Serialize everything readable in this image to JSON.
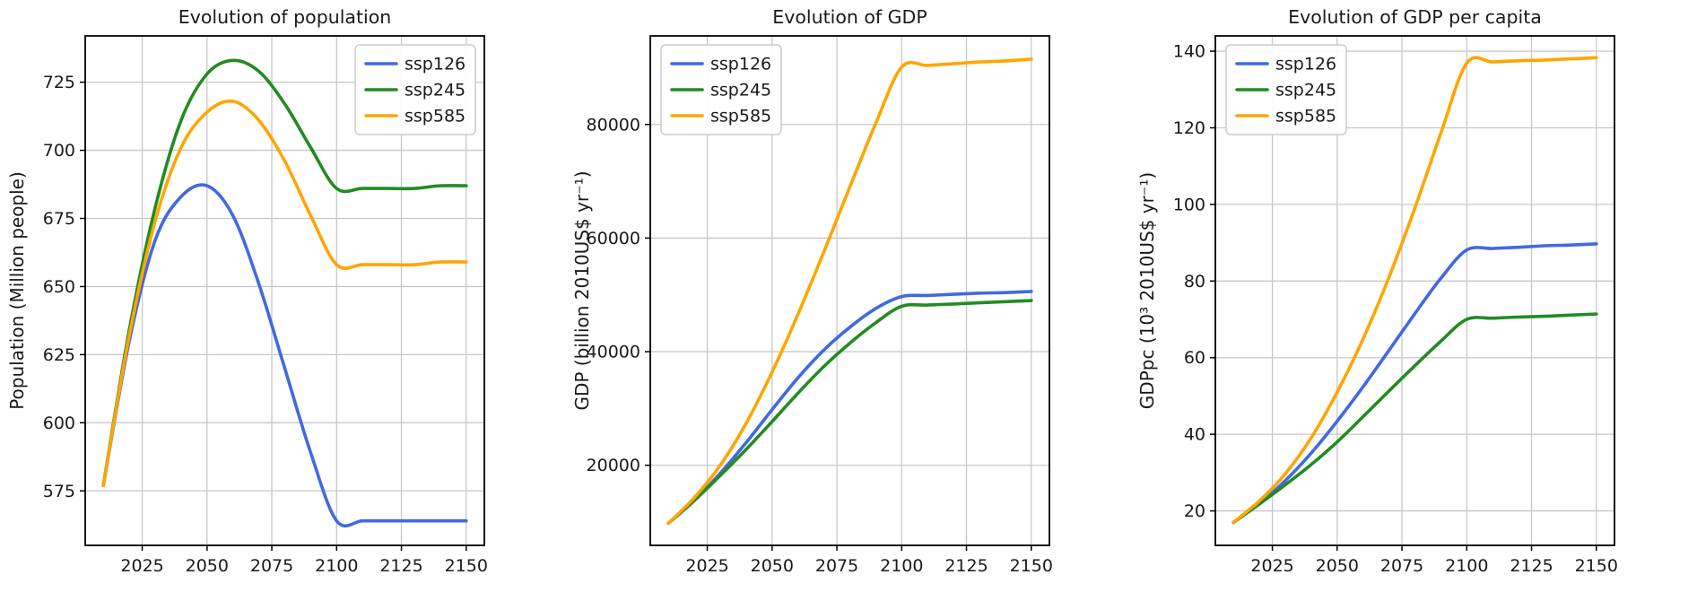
{
  "figure": {
    "background": "#ffffff",
    "grid_color": "#c8c8c8",
    "spine_color": "#000000",
    "legend_border_color": "#cccccc"
  },
  "chart_data": [
    {
      "id": "population",
      "type": "line",
      "title": "Evolution of population",
      "xlabel": "",
      "ylabel": "Population (Million people)",
      "grid": true,
      "legend_position": "top-right",
      "xlim": [
        2003,
        2157
      ],
      "ylim": [
        555,
        742
      ],
      "xticks": [
        2025,
        2050,
        2075,
        2100,
        2125,
        2150
      ],
      "yticks": [
        575,
        600,
        625,
        650,
        675,
        700,
        725
      ],
      "x": [
        2010,
        2020,
        2030,
        2040,
        2050,
        2060,
        2070,
        2080,
        2090,
        2100,
        2110,
        2120,
        2130,
        2140,
        2150
      ],
      "series": [
        {
          "name": "ssp126",
          "color": "#4169e1",
          "values": [
            577,
            630,
            667,
            683,
            687,
            676,
            651,
            620,
            589,
            564,
            564,
            564,
            564,
            564,
            564
          ]
        },
        {
          "name": "ssp245",
          "color": "#228b22",
          "values": [
            577,
            634,
            679,
            711,
            728,
            733,
            729,
            717,
            701,
            686,
            686,
            686,
            686,
            687,
            687
          ]
        },
        {
          "name": "ssp585",
          "color": "#ffa500",
          "values": [
            577,
            632,
            674,
            701,
            714,
            718,
            711,
            696,
            676,
            658,
            658,
            658,
            658,
            659,
            659
          ]
        }
      ]
    },
    {
      "id": "gdp",
      "type": "line",
      "title": "Evolution of GDP",
      "xlabel": "",
      "ylabel": "GDP (billion 2010US$ yr⁻¹)",
      "grid": true,
      "legend_position": "top-left",
      "xlim": [
        2003,
        2157
      ],
      "ylim": [
        5900,
        95600
      ],
      "xticks": [
        2025,
        2050,
        2075,
        2100,
        2125,
        2150
      ],
      "yticks": [
        20000,
        40000,
        60000,
        80000
      ],
      "x": [
        2010,
        2020,
        2030,
        2040,
        2050,
        2060,
        2070,
        2080,
        2090,
        2100,
        2110,
        2120,
        2130,
        2140,
        2150
      ],
      "series": [
        {
          "name": "ssp126",
          "color": "#4169e1",
          "values": [
            9800,
            13800,
            18600,
            24000,
            29800,
            35400,
            40300,
            44300,
            47600,
            49700,
            49900,
            50100,
            50300,
            50400,
            50600
          ]
        },
        {
          "name": "ssp245",
          "color": "#228b22",
          "values": [
            9800,
            13800,
            18200,
            22800,
            27700,
            32700,
            37400,
            41500,
            45100,
            48000,
            48200,
            48400,
            48600,
            48800,
            49000
          ]
        },
        {
          "name": "ssp585",
          "color": "#ffa500",
          "values": [
            9800,
            14300,
            20000,
            27400,
            36400,
            46600,
            57600,
            69000,
            80200,
            90100,
            90400,
            90700,
            91000,
            91200,
            91500
          ]
        }
      ]
    },
    {
      "id": "gdp-per-capita",
      "type": "line",
      "title": "Evolution of GDP per capita",
      "xlabel": "",
      "ylabel": "GDPpc (10³ 2010US$ yr⁻¹)",
      "grid": true,
      "legend_position": "top-left",
      "xlim": [
        2003,
        2157
      ],
      "ylim": [
        11,
        144
      ],
      "xticks": [
        2025,
        2050,
        2075,
        2100,
        2125,
        2150
      ],
      "yticks": [
        20,
        40,
        60,
        80,
        100,
        120,
        140
      ],
      "x": [
        2010,
        2020,
        2030,
        2040,
        2050,
        2060,
        2070,
        2080,
        2090,
        2100,
        2110,
        2120,
        2130,
        2140,
        2150
      ],
      "series": [
        {
          "name": "ssp126",
          "color": "#4169e1",
          "values": [
            17.0,
            21.9,
            27.9,
            35.1,
            43.4,
            52.4,
            61.9,
            71.5,
            80.7,
            88.1,
            88.5,
            88.8,
            89.2,
            89.4,
            89.7
          ]
        },
        {
          "name": "ssp245",
          "color": "#228b22",
          "values": [
            17.0,
            21.8,
            26.8,
            32.1,
            38.0,
            44.6,
            51.3,
            57.9,
            64.3,
            70.0,
            70.3,
            70.6,
            70.8,
            71.1,
            71.4
          ]
        },
        {
          "name": "ssp585",
          "color": "#ffa500",
          "values": [
            17.0,
            22.6,
            29.7,
            39.1,
            51.0,
            64.9,
            81.0,
            99.1,
            118.6,
            136.9,
            137.2,
            137.5,
            137.7,
            138.0,
            138.3
          ]
        }
      ]
    }
  ]
}
